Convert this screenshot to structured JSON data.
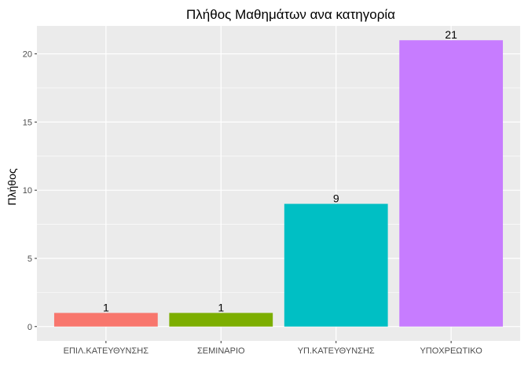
{
  "chart_data": {
    "type": "bar",
    "title": "Πλήθος Μαθημάτων ανα κατηγορία",
    "xlabel": "",
    "ylabel": "Πλήθος",
    "categories": [
      "ΕΠΙΛ.ΚΑΤΕΥΘΥΝΣΗΣ",
      "ΣΕΜΙΝΑΡΙΟ",
      "ΥΠ.ΚΑΤΕΥΘΥΝΣΗΣ",
      "ΥΠΟΧΡΕΩΤΙΚΟ"
    ],
    "values": [
      1,
      1,
      9,
      21
    ],
    "data_labels": [
      "1",
      "1",
      "9",
      "21"
    ],
    "colors": [
      "#F8766D",
      "#7CAE00",
      "#00BFC4",
      "#C77CFF"
    ],
    "yticks": [
      0,
      5,
      10,
      15,
      20
    ],
    "ylim": [
      -1.05,
      22.05
    ],
    "grid": true,
    "legend": "none",
    "panel_background": "#EBEBEB",
    "gridline_color": "#FFFFFF"
  }
}
